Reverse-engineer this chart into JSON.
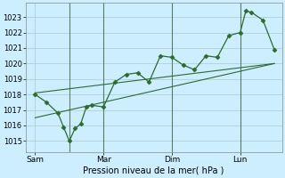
{
  "xlabel": "Pression niveau de la mer( hPa )",
  "bg_color": "#cceeff",
  "grid_color": "#aacccc",
  "line_color": "#2d6a2d",
  "vline_color": "#446644",
  "ylim": [
    1014.3,
    1023.9
  ],
  "ytick_values": [
    1015,
    1016,
    1017,
    1018,
    1019,
    1020,
    1021,
    1022,
    1023
  ],
  "xtick_labels": [
    "Sam",
    "Mar",
    "Dim",
    "Lun"
  ],
  "xtick_positions": [
    0,
    36,
    72,
    108
  ],
  "vline_positions": [
    18,
    36,
    72,
    108
  ],
  "xlim": [
    -5,
    130
  ],
  "series1_x": [
    0,
    6,
    12,
    15,
    18,
    21,
    24,
    27,
    30,
    36,
    42,
    48,
    54,
    60,
    66,
    72,
    78,
    84,
    90,
    96,
    102,
    108,
    111,
    114,
    120,
    126
  ],
  "series1_y": [
    1018.0,
    1017.5,
    1016.8,
    1015.9,
    1015.0,
    1015.8,
    1016.1,
    1017.2,
    1017.3,
    1017.2,
    1018.8,
    1019.3,
    1019.4,
    1018.8,
    1020.5,
    1020.4,
    1019.9,
    1019.6,
    1020.5,
    1020.4,
    1021.8,
    1022.0,
    1023.4,
    1023.3,
    1022.8,
    1020.9
  ],
  "series2_x": [
    0,
    126
  ],
  "series2_y": [
    1018.1,
    1020.0
  ],
  "series3_x": [
    0,
    126
  ],
  "series3_y": [
    1016.5,
    1020.0
  ],
  "figsize": [
    3.2,
    2.0
  ],
  "dpi": 100
}
